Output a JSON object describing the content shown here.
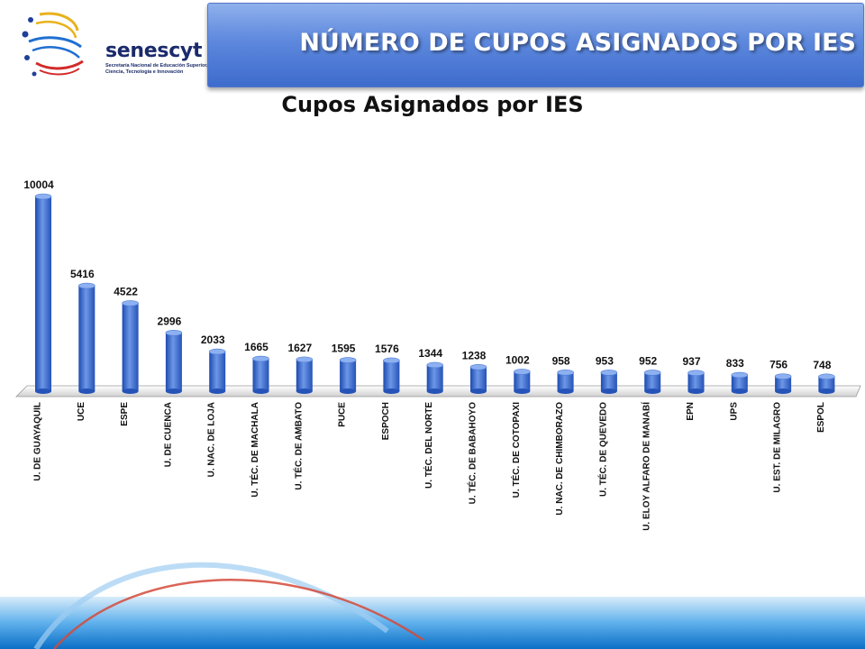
{
  "header": {
    "logo_word": "senescyt",
    "logo_sub_line1": "Secretaría Nacional de Educación Superior,",
    "logo_sub_line2": "Ciencia, Tecnología e Innovación",
    "title": "NÚMERO DE CUPOS ASIGNADOS POR IES"
  },
  "colors": {
    "bar": "#3f6fcf",
    "bar_top": "#8db0f0",
    "banner": "#5d88dd",
    "footer_arc_blue": "#6aa8e8",
    "footer_arc_red": "#d34a3a"
  },
  "chart_data": {
    "type": "bar",
    "title": "Cupos Asignados por IES",
    "categories": [
      "U. DE GUAYAQUIL",
      "UCE",
      "ESPE",
      "U. DE CUENCA",
      "U. NAC. DE LOJA",
      "U. TÉC. DE MACHALA",
      "U. TÉC. DE AMBATO",
      "PUCE",
      "ESPOCH",
      "U. TÉC. DEL NORTE",
      "U. TÉC. DE BABAHOYO",
      "U. TÉC. DE COTOPAXI",
      "U. NAC. DE CHIMBORAZO",
      "U. TÉC. DE QUEVEDO",
      "U. ELOY ALFARO DE MANABÍ",
      "EPN",
      "UPS",
      "U. EST. DE MILAGRO",
      "ESPOL"
    ],
    "values": [
      10004,
      5416,
      4522,
      2996,
      2033,
      1665,
      1627,
      1595,
      1576,
      1344,
      1238,
      1002,
      958,
      953,
      952,
      937,
      833,
      756,
      748
    ],
    "ylim": [
      0,
      10004
    ],
    "grid": false,
    "legend": "none",
    "data_labels": true
  }
}
